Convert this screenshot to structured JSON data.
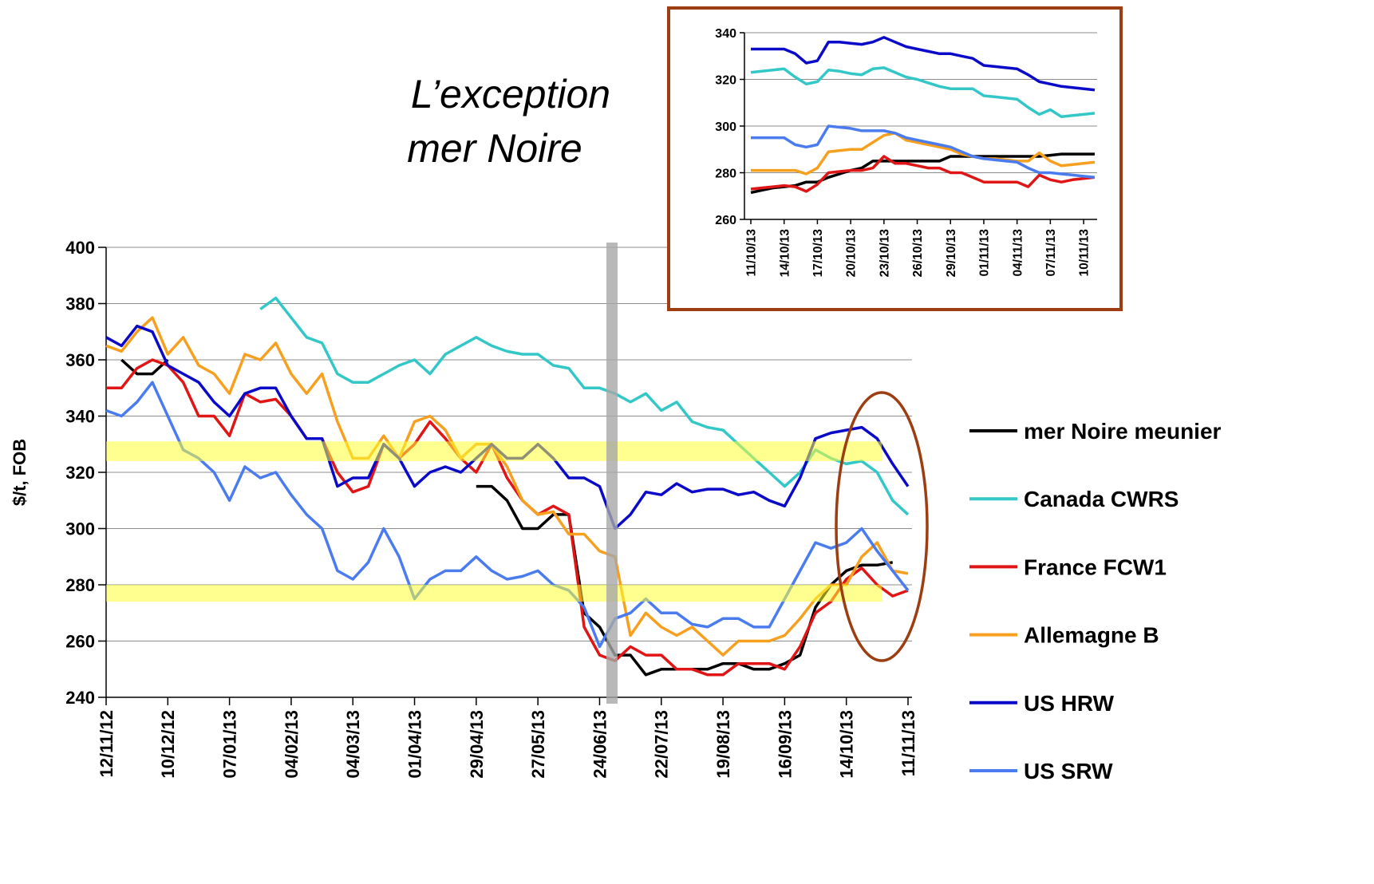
{
  "chart_data": [
    {
      "type": "line",
      "title": [
        "L’exception",
        "mer Noire"
      ],
      "ylabel": "$/t, FOB",
      "categories": [
        "12/11/12",
        null,
        null,
        null,
        "10/12/12",
        null,
        null,
        null,
        "07/01/13",
        null,
        null,
        null,
        "04/02/13",
        null,
        null,
        null,
        "04/03/13",
        null,
        null,
        null,
        "01/04/13",
        null,
        null,
        null,
        "29/04/13",
        null,
        null,
        null,
        "27/05/13",
        null,
        null,
        null,
        "24/06/13",
        null,
        null,
        null,
        "22/07/13",
        null,
        null,
        null,
        "19/08/13",
        null,
        null,
        null,
        "16/09/13",
        null,
        null,
        null,
        "14/10/13",
        null,
        null,
        null,
        "11/11/13"
      ],
      "ylim": [
        240,
        400
      ],
      "yticks": [
        240,
        260,
        280,
        300,
        320,
        340,
        360,
        380,
        400
      ],
      "grid": true,
      "bands": [
        [
          324,
          331
        ],
        [
          274,
          280
        ]
      ],
      "band_color": "#ffff33",
      "series": [
        {
          "name": "mer Noire meunier",
          "color": "#000000",
          "values": [
            null,
            360,
            355,
            355,
            360,
            null,
            null,
            null,
            null,
            null,
            null,
            null,
            null,
            null,
            null,
            null,
            null,
            null,
            null,
            null,
            null,
            null,
            null,
            null,
            315,
            315,
            310,
            300,
            300,
            305,
            305,
            270,
            265,
            255,
            255,
            248,
            250,
            250,
            250,
            250,
            252,
            252,
            250,
            250,
            252,
            255,
            272,
            280,
            285,
            287,
            287,
            288,
            null
          ]
        },
        {
          "name": "Canada CWRS",
          "color": "#33c7c7",
          "values": [
            null,
            null,
            null,
            null,
            null,
            null,
            null,
            null,
            null,
            null,
            378,
            382,
            375,
            368,
            366,
            355,
            352,
            352,
            355,
            358,
            360,
            355,
            362,
            365,
            368,
            365,
            363,
            362,
            362,
            358,
            357,
            350,
            350,
            348,
            345,
            348,
            342,
            345,
            338,
            336,
            335,
            330,
            325,
            320,
            315,
            320,
            328,
            325,
            323,
            324,
            320,
            310,
            305
          ]
        },
        {
          "name": "France FCW1",
          "color": "#e01515",
          "values": [
            350,
            350,
            357,
            360,
            358,
            352,
            340,
            340,
            333,
            348,
            345,
            346,
            340,
            332,
            332,
            320,
            313,
            315,
            330,
            325,
            330,
            338,
            332,
            325,
            320,
            330,
            318,
            310,
            305,
            308,
            305,
            265,
            255,
            253,
            258,
            255,
            255,
            250,
            250,
            248,
            248,
            252,
            252,
            252,
            250,
            258,
            270,
            274,
            282,
            286,
            280,
            276,
            278
          ]
        },
        {
          "name": "Allemagne B",
          "color": "#f7a020",
          "values": [
            365,
            363,
            370,
            375,
            362,
            368,
            358,
            355,
            348,
            362,
            360,
            366,
            355,
            348,
            355,
            338,
            325,
            325,
            333,
            325,
            338,
            340,
            335,
            325,
            330,
            330,
            322,
            310,
            305,
            306,
            298,
            298,
            292,
            290,
            262,
            270,
            265,
            262,
            265,
            260,
            255,
            260,
            260,
            260,
            262,
            268,
            275,
            280,
            280,
            290,
            295,
            285,
            284
          ]
        },
        {
          "name": "US HRW",
          "color": "#0a0ac8",
          "values": [
            368,
            365,
            372,
            370,
            358,
            355,
            352,
            345,
            340,
            348,
            350,
            350,
            340,
            332,
            332,
            315,
            318,
            318,
            330,
            325,
            315,
            320,
            322,
            320,
            325,
            330,
            325,
            325,
            330,
            325,
            318,
            318,
            315,
            300,
            305,
            313,
            312,
            316,
            313,
            314,
            314,
            312,
            313,
            310,
            308,
            318,
            332,
            334,
            335,
            336,
            332,
            323,
            315
          ]
        },
        {
          "name": "US SRW",
          "color": "#4a7cf0",
          "values": [
            342,
            340,
            345,
            352,
            340,
            328,
            325,
            320,
            310,
            322,
            318,
            320,
            312,
            305,
            300,
            285,
            282,
            288,
            300,
            290,
            275,
            282,
            285,
            285,
            290,
            285,
            282,
            283,
            285,
            280,
            278,
            272,
            258,
            268,
            270,
            275,
            270,
            270,
            266,
            265,
            268,
            268,
            265,
            265,
            275,
            285,
            295,
            293,
            295,
            300,
            292,
            285,
            278
          ]
        }
      ]
    },
    {
      "type": "line",
      "categories": [
        "11/10/13",
        null,
        null,
        "14/10/13",
        null,
        null,
        "17/10/13",
        null,
        null,
        "20/10/13",
        null,
        null,
        "23/10/13",
        null,
        null,
        "26/10/13",
        null,
        null,
        "29/10/13",
        null,
        null,
        "01/11/13",
        null,
        null,
        "04/11/13",
        null,
        null,
        "07/11/13",
        null,
        null,
        "10/11/13",
        null
      ],
      "ylim": [
        260,
        340
      ],
      "yticks": [
        260,
        280,
        300,
        320,
        340
      ],
      "grid": true,
      "frame_color": "#9c3d12",
      "series": [
        {
          "color": "#000000",
          "values": [
            271.5,
            272.5,
            273.5,
            274,
            274.5,
            276,
            276,
            278,
            279.5,
            281,
            282,
            285,
            285,
            285,
            285,
            285,
            285,
            285,
            287,
            287,
            287,
            287,
            287,
            287,
            287,
            287,
            287,
            287.5,
            288,
            288,
            288,
            288
          ]
        },
        {
          "color": "#33c7c7",
          "values": [
            323,
            323.5,
            324,
            324.5,
            321,
            318,
            319,
            324,
            323.5,
            322.5,
            322,
            324.5,
            325,
            323,
            321,
            320,
            318.5,
            317,
            316,
            316,
            316,
            313,
            312.5,
            312,
            311.5,
            308,
            305,
            307,
            304,
            304.5,
            305,
            305.5
          ]
        },
        {
          "color": "#e01515",
          "values": [
            273,
            273.5,
            274,
            274.5,
            274,
            272,
            275,
            280,
            280.5,
            281,
            281,
            282,
            287,
            284,
            284,
            283,
            282,
            282,
            280,
            280,
            278,
            276,
            276,
            276,
            276,
            274,
            279,
            277,
            276,
            277,
            277.5,
            278
          ]
        },
        {
          "color": "#f7a020",
          "values": [
            281,
            281,
            281,
            281,
            281,
            279.5,
            282,
            289,
            289.5,
            290,
            290,
            293,
            296,
            297,
            294,
            293,
            292,
            291,
            290,
            288,
            287,
            286,
            286,
            285.5,
            285,
            285,
            288.5,
            285,
            283,
            283.5,
            284,
            284.5
          ]
        },
        {
          "color": "#0a0ac8",
          "values": [
            333,
            333,
            333,
            333,
            331,
            327,
            328,
            336,
            336,
            335.5,
            335,
            336,
            338,
            336,
            334,
            333,
            332,
            331,
            331,
            330,
            329,
            326,
            325.5,
            325,
            324.5,
            322,
            319,
            318,
            317,
            316.5,
            316,
            315.5
          ]
        },
        {
          "color": "#4a7cf0",
          "values": [
            295,
            295,
            295,
            295,
            292,
            291,
            292,
            300,
            299.5,
            299,
            298,
            298,
            298,
            297,
            295,
            294,
            293,
            292,
            291,
            289,
            287,
            286,
            285.5,
            285,
            284.5,
            282,
            280,
            280,
            279.5,
            279,
            278.5,
            278
          ]
        }
      ]
    }
  ]
}
